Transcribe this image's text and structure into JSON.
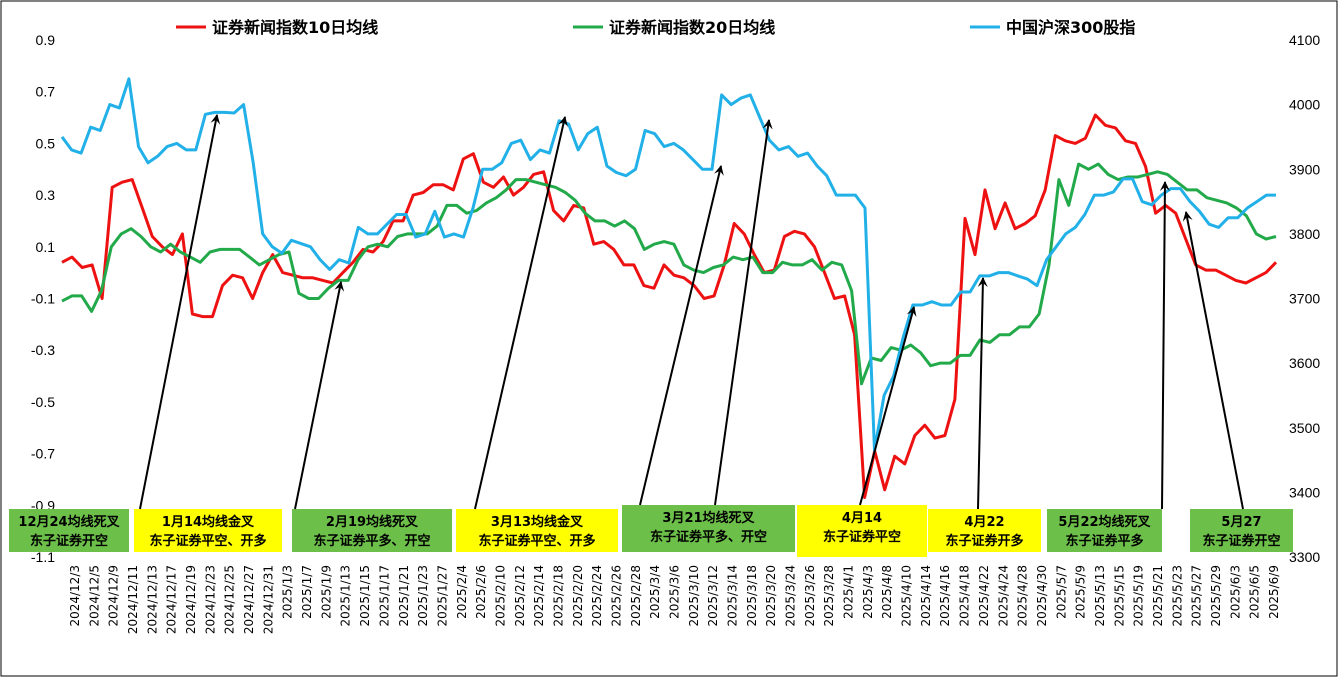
{
  "chart_data": {
    "type": "line",
    "title": "",
    "legend": {
      "position": "top",
      "entries": [
        {
          "name": "证券新闻指数10日均线",
          "color": "#ee1111"
        },
        {
          "name": "证券新闻指数20日均线",
          "color": "#22a94a"
        },
        {
          "name": "中国沪深300股指",
          "color": "#22b0e8"
        }
      ]
    },
    "y_left": {
      "ticks": [
        "0.9",
        "0.7",
        "0.5",
        "0.3",
        "0.1",
        "-0.1",
        "-0.3",
        "-0.5",
        "-0.7",
        "-0.9",
        "-1.1"
      ],
      "min": -1.1,
      "max": 0.9
    },
    "y_right": {
      "ticks": [
        "4100",
        "4000",
        "3900",
        "3800",
        "3700",
        "3600",
        "3500",
        "3400",
        "3300"
      ],
      "min": 3300,
      "max": 4100
    },
    "x_labels": [
      "2024/12/3",
      "2024/12/5",
      "2024/12/9",
      "2024/12/11",
      "2024/12/13",
      "2024/12/17",
      "2024/12/19",
      "2024/12/23",
      "2024/12/25",
      "2024/12/27",
      "2024/12/31",
      "2025/1/3",
      "2025/1/7",
      "2025/1/9",
      "2025/1/13",
      "2025/1/15",
      "2025/1/17",
      "2025/1/21",
      "2025/1/23",
      "2025/1/27",
      "2025/2/4",
      "2025/2/6",
      "2025/2/10",
      "2025/2/12",
      "2025/2/14",
      "2025/2/18",
      "2025/2/20",
      "2025/2/24",
      "2025/2/26",
      "2025/2/28",
      "2025/3/4",
      "2025/3/6",
      "2025/3/10",
      "2025/3/12",
      "2025/3/14",
      "2025/3/18",
      "2025/3/20",
      "2025/3/24",
      "2025/3/26",
      "2025/3/28",
      "2025/4/1",
      "2025/4/3",
      "2025/4/8",
      "2025/4/10",
      "2025/4/14",
      "2025/4/16",
      "2025/4/18",
      "2025/4/22",
      "2025/4/24",
      "2025/4/28",
      "2025/4/30",
      "2025/5/7",
      "2025/5/9",
      "2025/5/13",
      "2025/5/15",
      "2025/5/19",
      "2025/5/21",
      "2025/5/23",
      "2025/5/27",
      "2025/5/29",
      "2025/6/3",
      "2025/6/5",
      "2025/6/9"
    ],
    "series": [
      {
        "name": "证券新闻指数10日均线",
        "axis": "left",
        "color": "#ee1111",
        "values": [
          0.04,
          0.06,
          0.02,
          0.03,
          -0.1,
          0.33,
          0.35,
          0.36,
          0.25,
          0.14,
          0.1,
          0.07,
          0.15,
          -0.16,
          -0.17,
          -0.17,
          -0.05,
          -0.01,
          -0.02,
          -0.1,
          0.0,
          0.07,
          0.0,
          -0.01,
          -0.02,
          -0.02,
          -0.03,
          -0.04,
          0.0,
          0.04,
          0.09,
          0.08,
          0.12,
          0.2,
          0.2,
          0.3,
          0.31,
          0.34,
          0.34,
          0.32,
          0.44,
          0.46,
          0.35,
          0.33,
          0.37,
          0.3,
          0.33,
          0.38,
          0.39,
          0.24,
          0.2,
          0.26,
          0.25,
          0.11,
          0.12,
          0.09,
          0.03,
          0.03,
          -0.05,
          -0.06,
          0.03,
          -0.01,
          -0.02,
          -0.05,
          -0.1,
          -0.09,
          0.03,
          0.19,
          0.15,
          0.07,
          0.0,
          0.01,
          0.14,
          0.16,
          0.15,
          0.1,
          0.0,
          -0.1,
          -0.09,
          -0.24,
          -0.87,
          -0.69,
          -0.84,
          -0.71,
          -0.74,
          -0.63,
          -0.59,
          -0.64,
          -0.63,
          -0.49,
          0.21,
          0.07,
          0.32,
          0.17,
          0.27,
          0.17,
          0.19,
          0.22,
          0.32,
          0.53,
          0.51,
          0.5,
          0.52,
          0.61,
          0.57,
          0.56,
          0.51,
          0.5,
          0.41,
          0.23,
          0.26,
          0.23,
          0.13,
          0.03,
          0.01,
          0.01,
          -0.01,
          -0.03,
          -0.04,
          -0.02,
          0.0,
          0.04
        ]
      },
      {
        "name": "证券新闻指数20日均线",
        "axis": "left",
        "color": "#22a94a",
        "values": [
          -0.11,
          -0.09,
          -0.09,
          -0.15,
          -0.07,
          0.1,
          0.15,
          0.17,
          0.14,
          0.1,
          0.08,
          0.11,
          0.08,
          0.06,
          0.04,
          0.08,
          0.09,
          0.09,
          0.09,
          0.06,
          0.03,
          0.05,
          0.07,
          0.08,
          -0.08,
          -0.1,
          -0.1,
          -0.06,
          -0.03,
          -0.03,
          0.05,
          0.1,
          0.11,
          0.1,
          0.14,
          0.15,
          0.15,
          0.15,
          0.18,
          0.26,
          0.26,
          0.23,
          0.24,
          0.27,
          0.29,
          0.32,
          0.36,
          0.36,
          0.35,
          0.34,
          0.33,
          0.31,
          0.28,
          0.23,
          0.2,
          0.2,
          0.18,
          0.2,
          0.17,
          0.09,
          0.11,
          0.12,
          0.11,
          0.03,
          0.01,
          0.0,
          0.02,
          0.03,
          0.06,
          0.05,
          0.06,
          0.0,
          0.0,
          0.04,
          0.03,
          0.03,
          0.05,
          0.01,
          0.04,
          0.03,
          -0.07,
          -0.43,
          -0.33,
          -0.34,
          -0.29,
          -0.3,
          -0.28,
          -0.31,
          -0.36,
          -0.35,
          -0.35,
          -0.32,
          -0.32,
          -0.26,
          -0.27,
          -0.24,
          -0.24,
          -0.21,
          -0.21,
          -0.16,
          0.03,
          0.36,
          0.26,
          0.42,
          0.4,
          0.42,
          0.38,
          0.36,
          0.37,
          0.37,
          0.38,
          0.39,
          0.38,
          0.35,
          0.32,
          0.32,
          0.29,
          0.28,
          0.27,
          0.25,
          0.22,
          0.15,
          0.13,
          0.14
        ]
      },
      {
        "name": "中国沪深300股指",
        "axis": "right",
        "color": "#22b0e8",
        "values": [
          3950,
          3930,
          3925,
          3965,
          3960,
          4000,
          3995,
          4040,
          3935,
          3910,
          3920,
          3935,
          3940,
          3930,
          3930,
          3985,
          3988,
          3988,
          3987,
          4000,
          3910,
          3800,
          3780,
          3770,
          3790,
          3785,
          3780,
          3760,
          3745,
          3760,
          3755,
          3810,
          3800,
          3800,
          3815,
          3830,
          3830,
          3795,
          3800,
          3835,
          3795,
          3800,
          3795,
          3840,
          3900,
          3900,
          3910,
          3940,
          3945,
          3915,
          3930,
          3925,
          3975,
          3970,
          3930,
          3955,
          3965,
          3905,
          3895,
          3890,
          3900,
          3960,
          3955,
          3935,
          3940,
          3930,
          3915,
          3900,
          3900,
          4015,
          4000,
          4010,
          4015,
          3980,
          3945,
          3930,
          3935,
          3920,
          3925,
          3905,
          3890,
          3860,
          3860,
          3860,
          3840,
          3465,
          3550,
          3580,
          3640,
          3690,
          3690,
          3695,
          3690,
          3690,
          3710,
          3710,
          3735,
          3735,
          3740,
          3740,
          3735,
          3730,
          3720,
          3760,
          3780,
          3800,
          3810,
          3830,
          3860,
          3860,
          3865,
          3885,
          3885,
          3850,
          3845,
          3860,
          3870,
          3870,
          3850,
          3835,
          3815,
          3810,
          3825,
          3825,
          3840,
          3850,
          3860,
          3860
        ]
      }
    ],
    "annotations": [
      {
        "lines": [
          "12月24均线死叉",
          "东子证券开空"
        ],
        "color": "#6cc04a"
      },
      {
        "lines": [
          "1月14均线金叉",
          "东子证券平空、开多"
        ],
        "color": "#ffff00"
      },
      {
        "lines": [
          "2月19均线死叉",
          "东子证券平多、开空"
        ],
        "color": "#6cc04a"
      },
      {
        "lines": [
          "3月13均线金叉",
          "东子证券平空、开多"
        ],
        "color": "#ffff00"
      },
      {
        "lines": [
          "3月21均线死叉",
          "东子证券平多、开空"
        ],
        "color": "#6cc04a"
      },
      {
        "lines": [
          "4月14",
          "东子证券平空"
        ],
        "color": "#ffff00"
      },
      {
        "lines": [
          "4月22",
          "东子证券开多"
        ],
        "color": "#ffff00"
      },
      {
        "lines": [
          "5月22均线死叉",
          "东子证券平多"
        ],
        "color": "#6cc04a"
      },
      {
        "lines": [
          "5月27",
          "东子证券开空"
        ],
        "color": "#6cc04a"
      }
    ]
  }
}
